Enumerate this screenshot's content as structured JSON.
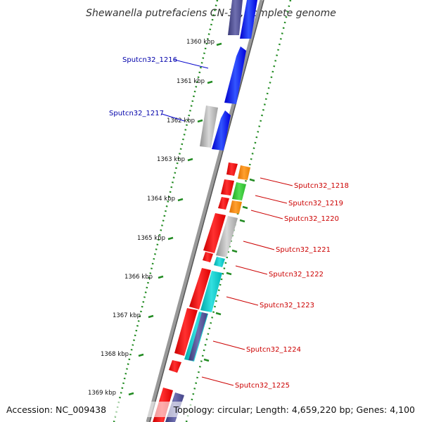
{
  "title": "Shewanella putrefaciens CN-32, complete genome",
  "accession": "Accession: NC_009438",
  "summary": "Topology: circular; Length: 4,659,220 bp; Genes: 4,100",
  "kbp_ticks": [
    "1360 kbp",
    "1361 kbp",
    "1362 kbp",
    "1363 kbp",
    "1364 kbp",
    "1365 kbp",
    "1366 kbp",
    "1367 kbp",
    "1368 kbp",
    "1369 kbp"
  ],
  "gene_labels": {
    "g1216": "Sputcn32_1216",
    "g1217": "Sputcn32_1217",
    "g1218": "Sputcn32_1218",
    "g1219": "Sputcn32_1219",
    "g1220": "Sputcn32_1220",
    "g1221": "Sputcn32_1221",
    "g1222": "Sputcn32_1222",
    "g1223": "Sputcn32_1223",
    "g1224": "Sputcn32_1224",
    "g1225": "Sputcn32_1225"
  },
  "colors": {
    "backbone": "#888888",
    "tick": "#228b22",
    "forward_gene": "#0000ff",
    "reverse_gene": "#ff0000",
    "hypothetical": "#b0b0b0",
    "cyan": "#00cccc",
    "orange": "#ff8800",
    "green": "#33cc33",
    "purple": "#4b4b8b"
  }
}
